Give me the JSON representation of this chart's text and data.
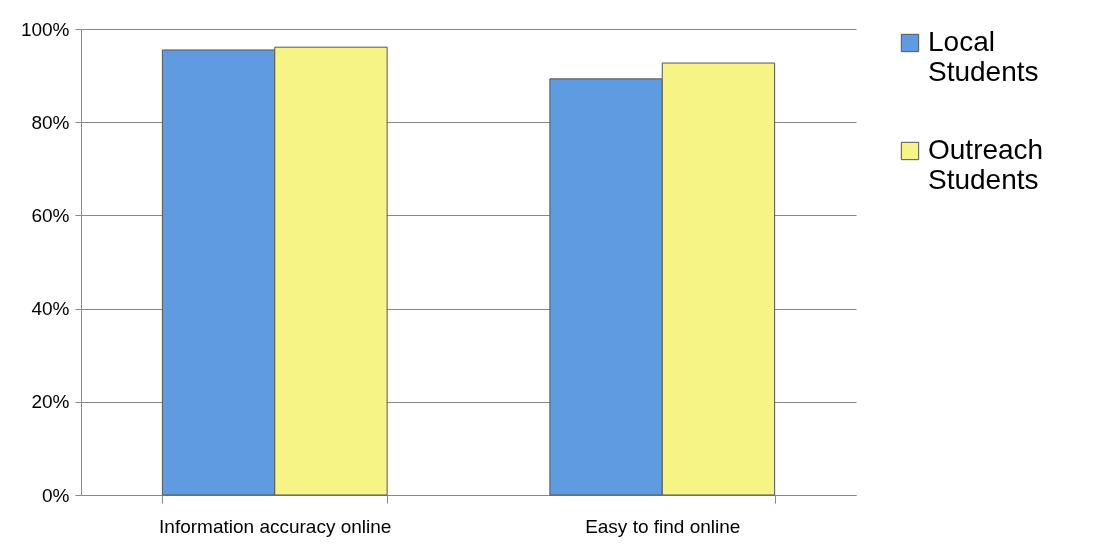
{
  "chart_data": {
    "type": "bar",
    "categories": [
      "Information accuracy online",
      "Easy to find online"
    ],
    "series": [
      {
        "name": "Local Students",
        "color": "#5f9be0",
        "values": [
          95.5,
          89.3
        ]
      },
      {
        "name": "Outreach Students",
        "color": "#f7f486",
        "values": [
          96.1,
          92.7
        ]
      }
    ],
    "ylim": [
      0,
      100
    ],
    "yticks": [
      {
        "value": 0,
        "label": "0%"
      },
      {
        "value": 20,
        "label": "20%"
      },
      {
        "value": 40,
        "label": "40%"
      },
      {
        "value": 60,
        "label": "60%"
      },
      {
        "value": 80,
        "label": "80%"
      },
      {
        "value": 100,
        "label": "100%"
      }
    ],
    "grid": "y",
    "legend": "right"
  }
}
